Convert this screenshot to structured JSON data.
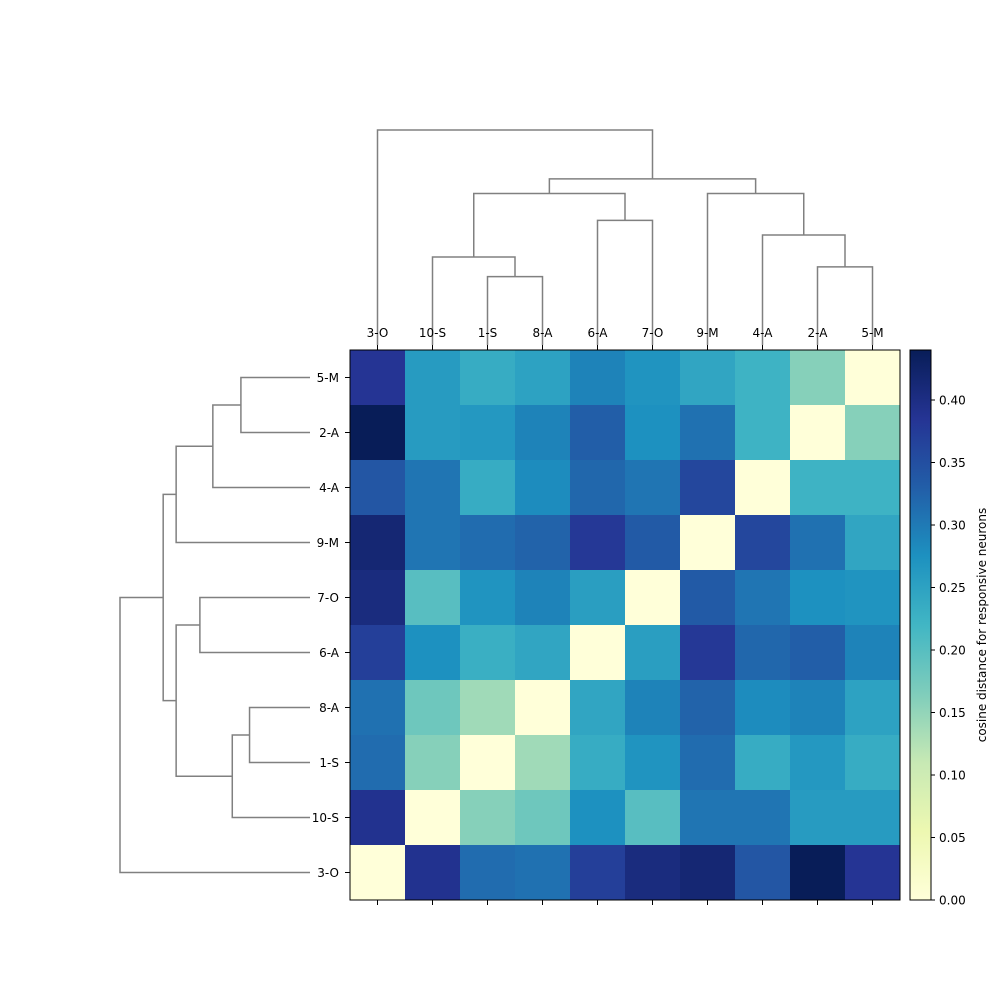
{
  "chart_data": {
    "type": "heatmap",
    "title": "",
    "col_labels": [
      "3-O",
      "10-S",
      "1-S",
      "8-A",
      "6-A",
      "7-O",
      "9-M",
      "4-A",
      "2-A",
      "5-M"
    ],
    "row_labels": [
      "5-M",
      "2-A",
      "4-A",
      "9-M",
      "7-O",
      "6-A",
      "8-A",
      "1-S",
      "10-S",
      "3-O"
    ],
    "values": [
      [
        0.385,
        0.26,
        0.235,
        0.25,
        0.29,
        0.27,
        0.245,
        0.225,
        0.16,
        0.0
      ],
      [
        0.44,
        0.26,
        0.265,
        0.29,
        0.33,
        0.275,
        0.31,
        0.225,
        0.0,
        0.16
      ],
      [
        0.34,
        0.305,
        0.235,
        0.28,
        0.32,
        0.305,
        0.36,
        0.0,
        0.225,
        0.225
      ],
      [
        0.415,
        0.305,
        0.315,
        0.325,
        0.38,
        0.335,
        0.0,
        0.36,
        0.31,
        0.245
      ],
      [
        0.405,
        0.2,
        0.27,
        0.29,
        0.255,
        0.0,
        0.335,
        0.305,
        0.275,
        0.27
      ],
      [
        0.37,
        0.275,
        0.23,
        0.245,
        0.0,
        0.255,
        0.38,
        0.32,
        0.33,
        0.29
      ],
      [
        0.31,
        0.18,
        0.14,
        0.0,
        0.245,
        0.29,
        0.325,
        0.28,
        0.29,
        0.25
      ],
      [
        0.315,
        0.16,
        0.0,
        0.14,
        0.235,
        0.27,
        0.315,
        0.235,
        0.265,
        0.235
      ],
      [
        0.39,
        0.0,
        0.16,
        0.18,
        0.275,
        0.2,
        0.305,
        0.305,
        0.26,
        0.26
      ],
      [
        0.0,
        0.39,
        0.315,
        0.31,
        0.37,
        0.405,
        0.415,
        0.34,
        0.44,
        0.385
      ]
    ],
    "colorbar": {
      "label": "cosine distance for responsive neurons",
      "colormap": "YlGnBu",
      "vmin": 0.0,
      "vmax": 0.44,
      "ticks": [
        "0.00",
        "0.05",
        "0.10",
        "0.15",
        "0.20",
        "0.25",
        "0.30",
        "0.35",
        "0.40"
      ]
    },
    "column_dendrogram": {
      "leaf_order": [
        "3-O",
        "10-S",
        "1-S",
        "8-A",
        "6-A",
        "7-O",
        "9-M",
        "4-A",
        "2-A",
        "5-M"
      ],
      "links": [
        {
          "a": "1-S",
          "b": "8-A",
          "height": 0.14
        },
        {
          "a": "10-S",
          "b": "1-S+8-A",
          "height": 0.18
        },
        {
          "a": "6-A",
          "b": "7-O",
          "height": 0.255
        },
        {
          "a": "10-S+1-S+8-A",
          "b": "6-A+7-O",
          "height": 0.31
        },
        {
          "a": "2-A",
          "b": "5-M",
          "height": 0.16
        },
        {
          "a": "4-A",
          "b": "2-A+5-M",
          "height": 0.225
        },
        {
          "a": "9-M",
          "b": "4-A+2-A+5-M",
          "height": 0.31
        },
        {
          "a": "10-S+1-S+8-A+6-A+7-O",
          "b": "9-M+4-A+2-A+5-M",
          "height": 0.34
        },
        {
          "a": "3-O",
          "b": "rest",
          "height": 0.44
        }
      ]
    },
    "row_dendrogram_same_as_column": true,
    "colors": {
      "dendrogram": "#808080",
      "colormap_stops": [
        "#ffffd9",
        "#edf8b1",
        "#c7e9b4",
        "#7fcdbb",
        "#41b6c4",
        "#1d91c0",
        "#225ea8",
        "#253494",
        "#081d58"
      ]
    }
  }
}
